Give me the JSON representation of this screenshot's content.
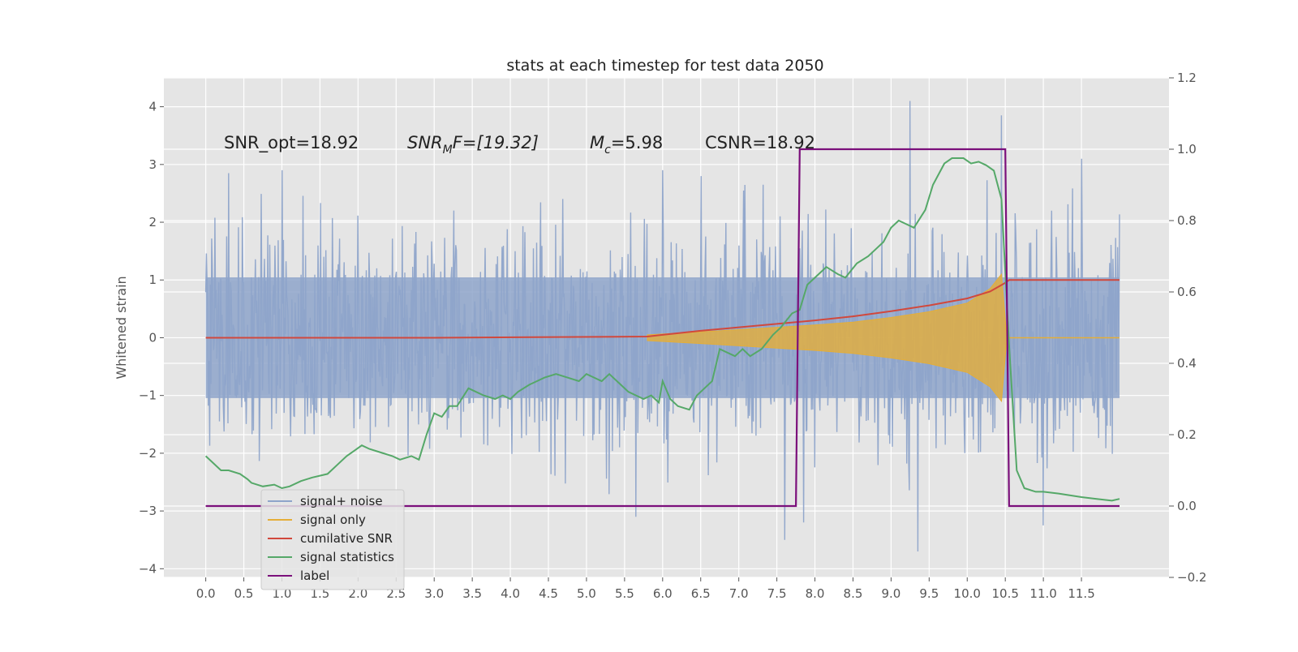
{
  "chart_data": {
    "type": "line",
    "title": "stats at each timestep for test data 2050",
    "ylabel": "Whitened strain",
    "y2label": "",
    "xlim": [
      -0.55,
      12.65
    ],
    "ylim": [
      -4.15,
      4.5
    ],
    "y2lim": [
      -0.2,
      1.2
    ],
    "x_ticks": [
      "0.0",
      "0.5",
      "1.0",
      "1.5",
      "2.0",
      "2.5",
      "3.0",
      "3.5",
      "4.0",
      "4.5",
      "5.0",
      "5.5",
      "6.0",
      "6.5",
      "7.0",
      "7.5",
      "8.0",
      "8.5",
      "9.0",
      "9.5",
      "10.0",
      "10.5",
      "11.0",
      "11.5"
    ],
    "y_ticks": [
      "4",
      "3",
      "2",
      "1",
      "0",
      "−1",
      "−2",
      "−3",
      "−4"
    ],
    "y2_ticks": [
      "1.2",
      "1.0",
      "0.8",
      "0.6",
      "0.4",
      "0.2",
      "0.0",
      "−0.2"
    ],
    "grid": true,
    "legend_position": "lower-left",
    "annotations": {
      "snr_opt": "SNR_opt=18.92",
      "snr_mf_base": "SNR",
      "snr_mf_sub": "M",
      "snr_mf_rest": "F=[19.32]",
      "mc_base": "M",
      "mc_sub": "c",
      "mc_rest": "=5.98",
      "csnr": "CSNR=18.92"
    },
    "series": [
      {
        "name": "signal+ noise",
        "axis": "left",
        "color": "#8ea4ca",
        "x_range": [
          0.0,
          12.0
        ],
        "envelope_upper_typical": 1.9,
        "envelope_lower_typical": -1.9,
        "peaks": [
          {
            "x": 0.3,
            "y": 2.85
          },
          {
            "x": 1.0,
            "y": 2.9
          },
          {
            "x": 6.0,
            "y": 2.9
          },
          {
            "x": 9.25,
            "y": 4.1
          },
          {
            "x": 10.45,
            "y": 3.85
          },
          {
            "x": 11.5,
            "y": 3.1
          },
          {
            "x": 5.65,
            "y": -3.1
          },
          {
            "x": 7.6,
            "y": -3.5
          },
          {
            "x": 7.85,
            "y": -3.2
          },
          {
            "x": 9.35,
            "y": -3.7
          },
          {
            "x": 11.0,
            "y": -3.25
          }
        ]
      },
      {
        "name": "signal only",
        "axis": "left",
        "color": "#e5ae38",
        "description_points": [
          {
            "x": 5.8,
            "amp": 0.05
          },
          {
            "x": 6.5,
            "amp": 0.1
          },
          {
            "x": 7.0,
            "amp": 0.14
          },
          {
            "x": 7.5,
            "amp": 0.18
          },
          {
            "x": 8.0,
            "amp": 0.22
          },
          {
            "x": 8.5,
            "amp": 0.27
          },
          {
            "x": 9.0,
            "amp": 0.35
          },
          {
            "x": 9.5,
            "amp": 0.45
          },
          {
            "x": 10.0,
            "amp": 0.6
          },
          {
            "x": 10.3,
            "amp": 0.85
          },
          {
            "x": 10.45,
            "amp": 1.1
          },
          {
            "x": 10.52,
            "amp": 0.0
          }
        ]
      },
      {
        "name": "cumilative SNR",
        "axis": "left",
        "color": "#d1483c",
        "x": [
          0.0,
          3.0,
          5.8,
          6.0,
          6.5,
          7.0,
          7.5,
          8.0,
          8.5,
          9.0,
          9.5,
          10.0,
          10.3,
          10.5,
          10.55,
          12.0
        ],
        "y": [
          0.0,
          0.0,
          0.02,
          0.05,
          0.12,
          0.18,
          0.24,
          0.3,
          0.37,
          0.46,
          0.56,
          0.68,
          0.8,
          0.95,
          1.0,
          1.0
        ]
      },
      {
        "name": "signal statistics",
        "axis": "right",
        "color": "#55a868",
        "x": [
          0.0,
          0.2,
          0.3,
          0.45,
          0.55,
          0.6,
          0.75,
          0.9,
          1.0,
          1.1,
          1.25,
          1.4,
          1.6,
          1.75,
          1.85,
          1.95,
          2.05,
          2.15,
          2.3,
          2.45,
          2.55,
          2.7,
          2.8,
          2.9,
          3.0,
          3.1,
          3.2,
          3.3,
          3.45,
          3.55,
          3.65,
          3.8,
          3.9,
          4.0,
          4.1,
          4.25,
          4.35,
          4.45,
          4.6,
          4.75,
          4.9,
          5.0,
          5.1,
          5.2,
          5.3,
          5.45,
          5.55,
          5.65,
          5.75,
          5.85,
          5.95,
          6.0,
          6.1,
          6.2,
          6.35,
          6.45,
          6.55,
          6.65,
          6.75,
          6.85,
          6.95,
          7.05,
          7.15,
          7.3,
          7.45,
          7.55,
          7.7,
          7.8,
          7.9,
          8.0,
          8.15,
          8.3,
          8.4,
          8.55,
          8.7,
          8.8,
          8.9,
          9.0,
          9.1,
          9.2,
          9.3,
          9.45,
          9.55,
          9.7,
          9.8,
          9.95,
          10.05,
          10.15,
          10.25,
          10.35,
          10.45,
          10.55,
          10.65,
          10.75,
          10.9,
          11.0,
          11.2,
          11.5,
          11.7,
          11.9,
          12.0
        ],
        "y": [
          0.14,
          0.1,
          0.1,
          0.09,
          0.075,
          0.065,
          0.055,
          0.06,
          0.05,
          0.055,
          0.07,
          0.08,
          0.09,
          0.12,
          0.14,
          0.155,
          0.17,
          0.16,
          0.15,
          0.14,
          0.13,
          0.14,
          0.13,
          0.2,
          0.26,
          0.25,
          0.28,
          0.28,
          0.33,
          0.32,
          0.31,
          0.3,
          0.31,
          0.3,
          0.32,
          0.34,
          0.35,
          0.36,
          0.37,
          0.36,
          0.35,
          0.37,
          0.36,
          0.35,
          0.37,
          0.34,
          0.32,
          0.31,
          0.3,
          0.31,
          0.29,
          0.35,
          0.3,
          0.28,
          0.27,
          0.31,
          0.33,
          0.35,
          0.44,
          0.43,
          0.42,
          0.44,
          0.42,
          0.44,
          0.48,
          0.5,
          0.54,
          0.55,
          0.62,
          0.64,
          0.67,
          0.65,
          0.64,
          0.68,
          0.7,
          0.72,
          0.74,
          0.78,
          0.8,
          0.79,
          0.78,
          0.83,
          0.9,
          0.96,
          0.975,
          0.975,
          0.96,
          0.965,
          0.955,
          0.94,
          0.86,
          0.45,
          0.1,
          0.05,
          0.04,
          0.04,
          0.035,
          0.025,
          0.02,
          0.015,
          0.02
        ]
      },
      {
        "name": "label",
        "axis": "right",
        "color": "#7b0f7b",
        "x": [
          0.0,
          7.75,
          7.8,
          10.5,
          10.55,
          12.0
        ],
        "y": [
          0.0,
          0.0,
          1.0,
          1.0,
          0.0,
          0.0
        ]
      }
    ]
  }
}
